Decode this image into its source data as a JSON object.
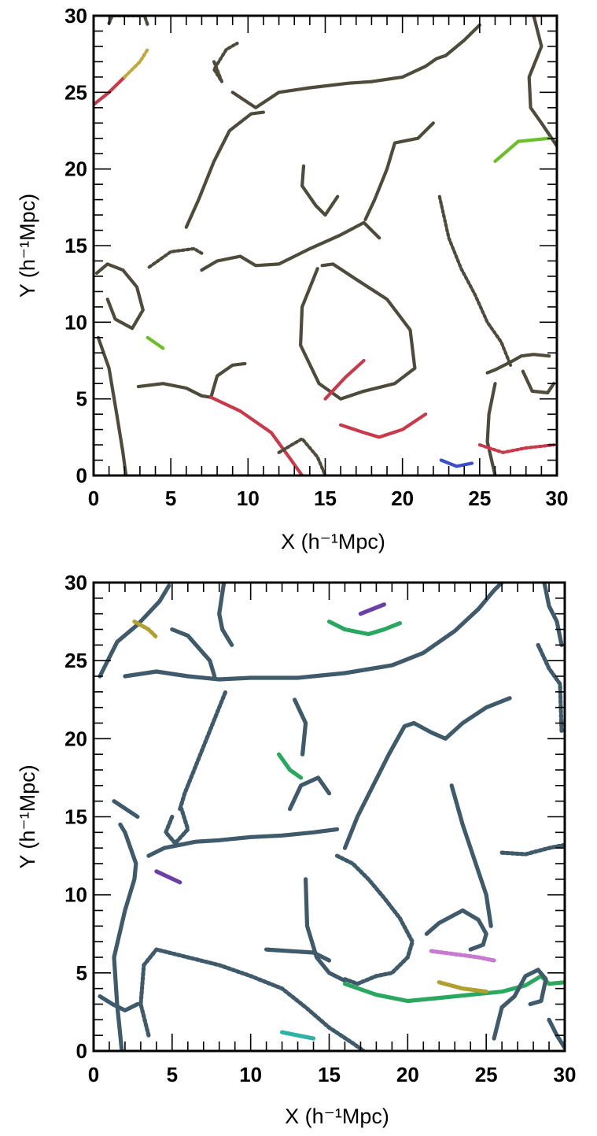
{
  "chart_data": [
    {
      "type": "scatter",
      "title": "",
      "xlabel": "X (h⁻¹Mpc)",
      "ylabel": "Y (h⁻¹Mpc)",
      "xlim": [
        0,
        30
      ],
      "ylim": [
        0,
        30
      ],
      "xticks": [
        "0",
        "5",
        "10",
        "15",
        "20",
        "25",
        "30"
      ],
      "yticks": [
        "0",
        "5",
        "10",
        "15",
        "20",
        "25",
        "30"
      ],
      "grid": false,
      "legend": "none",
      "colors": [
        "#4f4b3b",
        "#c83a4a",
        "#6bbf2a",
        "#3a4fd0",
        "#2fb3a6",
        "#c2a83a",
        "#9b3d6a"
      ],
      "series": [
        {
          "color": "#4f4b3b",
          "x": [
            0.3,
            1.0,
            1.5,
            1.9,
            2.1
          ],
          "y": [
            9.0,
            7.0,
            4.0,
            1.5,
            0.0
          ]
        },
        {
          "color": "#4f4b3b",
          "x": [
            2.9,
            4.5,
            6.0,
            7.0,
            7.6,
            8.0,
            9.0,
            9.8
          ],
          "y": [
            5.8,
            6.0,
            5.7,
            5.2,
            5.1,
            6.5,
            7.2,
            7.3
          ]
        },
        {
          "color": "#c83a4a",
          "x": [
            7.6,
            9.5,
            11.5,
            12.8,
            13.5
          ],
          "y": [
            5.1,
            4.2,
            2.8,
            1.0,
            0.0
          ]
        },
        {
          "color": "#4f4b3b",
          "x": [
            12.0,
            13.5,
            14.5,
            15.0
          ],
          "y": [
            1.5,
            2.4,
            1.2,
            0.0
          ]
        },
        {
          "color": "#4f4b3b",
          "x": [
            14.5,
            13.5,
            13.4,
            14.6,
            16.0,
            17.5,
            19.5,
            20.8,
            20.5,
            19.0,
            17.0,
            15.5,
            14.8
          ],
          "y": [
            13.5,
            11.0,
            8.5,
            6.0,
            5.0,
            5.5,
            6.0,
            7.0,
            9.5,
            11.5,
            12.8,
            13.8,
            13.7
          ]
        },
        {
          "color": "#c83a4a",
          "x": [
            15.0,
            16.3,
            17.5
          ],
          "y": [
            5.0,
            6.4,
            7.5
          ]
        },
        {
          "color": "#4f4b3b",
          "x": [
            0.2,
            0.9,
            1.9,
            2.8,
            3.2,
            2.5,
            1.4,
            0.9
          ],
          "y": [
            13.2,
            13.8,
            13.4,
            12.3,
            10.8,
            9.6,
            10.2,
            11.5
          ]
        },
        {
          "color": "#4f4b3b",
          "x": [
            3.6,
            5.0,
            6.5,
            7.0
          ],
          "y": [
            13.6,
            14.6,
            14.8,
            14.5
          ]
        },
        {
          "color": "#4f4b3b",
          "x": [
            7.0,
            8.0,
            9.5,
            10.5,
            12.0,
            14.0,
            16.0,
            17.5,
            18.5
          ],
          "y": [
            13.4,
            14.0,
            14.3,
            13.7,
            13.8,
            14.8,
            15.7,
            16.5,
            15.5
          ]
        },
        {
          "color": "#4f4b3b",
          "x": [
            6.0,
            6.8,
            7.8,
            8.8,
            10.2,
            11.0
          ],
          "y": [
            16.2,
            18.0,
            20.5,
            22.5,
            23.6,
            23.7
          ]
        },
        {
          "color": "#4f4b3b",
          "x": [
            9.0,
            10.5,
            12.0,
            14.0,
            16.5,
            18.0
          ],
          "y": [
            25.0,
            24.0,
            25.0,
            25.3,
            25.6,
            25.7
          ]
        },
        {
          "color": "#4f4b3b",
          "x": [
            7.8,
            8.3,
            7.8,
            8.6,
            9.3
          ],
          "y": [
            27.0,
            25.7,
            26.5,
            27.8,
            28.2
          ]
        },
        {
          "color": "#4f4b3b",
          "x": [
            18.0,
            20.0,
            21.5,
            22.2,
            22.8,
            24.0,
            25.0
          ],
          "y": [
            25.7,
            26.0,
            26.7,
            27.2,
            27.4,
            28.4,
            29.4
          ]
        },
        {
          "color": "#4f4b3b",
          "x": [
            17.6,
            18.2,
            19.0,
            19.5,
            20.0,
            21.0,
            22.0
          ],
          "y": [
            16.7,
            18.0,
            20.0,
            21.7,
            21.8,
            22.0,
            23.0
          ]
        },
        {
          "color": "#4f4b3b",
          "x": [
            13.6,
            13.5,
            14.4,
            15.0,
            15.8
          ],
          "y": [
            20.2,
            18.9,
            17.6,
            17.0,
            18.2
          ]
        },
        {
          "color": "#4f4b3b",
          "x": [
            22.4,
            23.0,
            23.8,
            24.7,
            25.5,
            26.4,
            27.0
          ],
          "y": [
            18.2,
            15.5,
            13.5,
            11.8,
            10.0,
            8.7,
            7.2
          ]
        },
        {
          "color": "#4f4b3b",
          "x": [
            25.5,
            26.0,
            27.0,
            27.7,
            28.5,
            29.5
          ],
          "y": [
            6.7,
            6.9,
            7.4,
            7.8,
            7.9,
            7.8
          ]
        },
        {
          "color": "#4f4b3b",
          "x": [
            26.0,
            25.6,
            25.5,
            26.0
          ],
          "y": [
            6.0,
            4.0,
            2.2,
            0.0
          ]
        },
        {
          "color": "#4f4b3b",
          "x": [
            27.8,
            28.4,
            29.4,
            29.8
          ],
          "y": [
            6.8,
            5.5,
            5.4,
            6.0
          ]
        },
        {
          "color": "#c83a4a",
          "x": [
            25.0,
            26.5,
            28.0,
            29.8
          ],
          "y": [
            2.0,
            1.5,
            1.8,
            2.0
          ]
        },
        {
          "color": "#4f4b3b",
          "x": [
            28.5,
            29.0,
            28.2,
            28.3,
            29.0,
            30.0
          ],
          "y": [
            30.0,
            28.0,
            26.0,
            24.0,
            23.0,
            21.5
          ]
        },
        {
          "color": "#6bbf2a",
          "x": [
            26.0,
            27.5,
            29.5
          ],
          "y": [
            20.5,
            21.8,
            22.0
          ]
        },
        {
          "color": "#c83a4a",
          "x": [
            0.0,
            1.0,
            2.0
          ],
          "y": [
            24.2,
            25.0,
            26.0
          ]
        },
        {
          "color": "#c2a83a",
          "x": [
            2.0,
            3.0,
            3.5
          ],
          "y": [
            26.0,
            27.0,
            27.8
          ]
        },
        {
          "color": "#6bbf2a",
          "x": [
            3.5,
            4.5
          ],
          "y": [
            9.0,
            8.3
          ]
        },
        {
          "color": "#c83a4a",
          "x": [
            16.0,
            17.5,
            18.5,
            20.0,
            21.5
          ],
          "y": [
            3.3,
            2.8,
            2.5,
            3.0,
            4.0
          ]
        },
        {
          "color": "#3a4fd0",
          "x": [
            22.5,
            23.5,
            24.5
          ],
          "y": [
            1.0,
            0.6,
            0.8
          ]
        },
        {
          "color": "#4f4b3b",
          "x": [
            1.0,
            1.2,
            1.6,
            2.2,
            3.3,
            3.5
          ],
          "y": [
            29.5,
            30.0,
            30.0,
            30.0,
            30.0,
            29.4
          ]
        }
      ]
    },
    {
      "type": "scatter",
      "title": "",
      "xlabel": "X (h⁻¹Mpc)",
      "ylabel": "Y (h⁻¹Mpc)",
      "xlim": [
        0,
        30
      ],
      "ylim": [
        0,
        30
      ],
      "xticks": [
        "0",
        "5",
        "10",
        "15",
        "20",
        "25",
        "30"
      ],
      "yticks": [
        "0",
        "5",
        "10",
        "15",
        "20",
        "25",
        "30"
      ],
      "grid": false,
      "legend": "none",
      "colors": [
        "#3f5a6a",
        "#6a3fa8",
        "#2aa860",
        "#2fb3a6",
        "#b0a030",
        "#c87ad0"
      ],
      "series": [
        {
          "color": "#3f5a6a",
          "x": [
            0.4,
            1.5,
            2.8,
            4.2,
            4.8
          ],
          "y": [
            24.0,
            26.2,
            27.3,
            28.8,
            29.8
          ]
        },
        {
          "color": "#3f5a6a",
          "x": [
            2.0,
            4.0,
            6.0,
            8.0,
            10.0,
            13.0,
            16.0,
            19.0,
            21.0,
            23.0,
            24.5,
            25.5,
            26.0
          ],
          "y": [
            24.0,
            24.3,
            24.0,
            23.8,
            23.9,
            23.9,
            24.2,
            24.7,
            25.5,
            26.9,
            28.3,
            29.5,
            30.0
          ]
        },
        {
          "color": "#3f5a6a",
          "x": [
            5.0,
            6.0,
            7.4,
            7.7
          ],
          "y": [
            27.0,
            26.6,
            25.0,
            24.0
          ]
        },
        {
          "color": "#3f5a6a",
          "x": [
            5.5,
            5.8,
            6.6,
            7.6,
            8.4
          ],
          "y": [
            15.5,
            16.5,
            18.5,
            21.0,
            23.0
          ]
        },
        {
          "color": "#3f5a6a",
          "x": [
            3.5,
            4.5,
            5.5,
            6.5,
            8.0,
            10.0,
            12.0,
            14.0,
            15.5
          ],
          "y": [
            12.5,
            13.0,
            13.2,
            13.4,
            13.5,
            13.7,
            13.8,
            14.0,
            14.2
          ]
        },
        {
          "color": "#3f5a6a",
          "x": [
            16.0,
            16.8,
            17.8,
            18.8,
            19.8,
            20.4
          ],
          "y": [
            13.0,
            15.0,
            17.0,
            19.0,
            20.8,
            21.0
          ]
        },
        {
          "color": "#3f5a6a",
          "x": [
            20.4,
            21.5,
            22.4,
            23.5,
            25.0,
            26.5
          ],
          "y": [
            21.0,
            20.4,
            20.0,
            21.0,
            22.0,
            22.6
          ]
        },
        {
          "color": "#3f5a6a",
          "x": [
            15.5,
            16.5,
            17.5,
            18.5,
            19.5,
            20.3,
            20.0,
            19.0,
            18.0,
            16.8,
            16.0
          ],
          "y": [
            12.5,
            12.0,
            11.0,
            9.8,
            8.5,
            7.0,
            6.0,
            5.0,
            4.8,
            4.3,
            4.6
          ]
        },
        {
          "color": "#3f5a6a",
          "x": [
            13.5,
            13.6,
            14.2,
            15.0,
            16.0
          ],
          "y": [
            11.0,
            8.0,
            6.0,
            5.0,
            4.5
          ]
        },
        {
          "color": "#3f5a6a",
          "x": [
            11.0,
            12.5,
            14.0,
            15.0
          ],
          "y": [
            6.5,
            6.4,
            6.3,
            5.8
          ]
        },
        {
          "color": "#3f5a6a",
          "x": [
            1.8,
            1.5,
            1.3,
            2.0,
            2.6,
            2.7,
            2.0,
            1.7
          ],
          "y": [
            0.0,
            3.0,
            6.0,
            9.0,
            11.0,
            12.0,
            14.0,
            14.5
          ]
        },
        {
          "color": "#3f5a6a",
          "x": [
            3.5,
            3.0,
            3.2,
            4.0,
            6.0,
            8.0,
            10.0,
            12.0,
            13.5,
            15.0,
            16.5,
            17.2
          ],
          "y": [
            1.0,
            3.0,
            5.5,
            6.5,
            6.0,
            5.5,
            4.8,
            4.0,
            2.8,
            1.5,
            0.5,
            0.0
          ]
        },
        {
          "color": "#2aa860",
          "x": [
            16.0,
            18.0,
            20.0,
            22.0,
            24.0,
            26.0,
            27.5,
            28.5,
            29.0,
            30.0
          ],
          "y": [
            4.3,
            3.6,
            3.2,
            3.4,
            3.6,
            3.8,
            4.2,
            4.8,
            4.3,
            4.4
          ]
        },
        {
          "color": "#3f5a6a",
          "x": [
            25.5,
            26.0,
            26.8,
            27.5,
            28.3,
            28.8,
            28.5,
            27.8
          ],
          "y": [
            0.8,
            2.8,
            3.5,
            4.8,
            5.2,
            4.6,
            3.2,
            3.0
          ]
        },
        {
          "color": "#3f5a6a",
          "x": [
            29.0,
            29.5,
            30.0
          ],
          "y": [
            2.0,
            1.0,
            0.2
          ]
        },
        {
          "color": "#3f5a6a",
          "x": [
            26.0,
            27.5,
            29.0,
            30.0
          ],
          "y": [
            12.7,
            12.6,
            13.0,
            13.2
          ]
        },
        {
          "color": "#3f5a6a",
          "x": [
            22.8,
            23.5,
            24.5,
            25.0,
            25.3
          ],
          "y": [
            17.0,
            14.5,
            11.5,
            10.0,
            8.0
          ]
        },
        {
          "color": "#3f5a6a",
          "x": [
            21.2,
            22.0,
            23.5,
            24.5,
            25.0,
            24.8,
            24.0
          ],
          "y": [
            7.5,
            8.2,
            9.0,
            8.4,
            7.5,
            6.8,
            6.5
          ]
        },
        {
          "color": "#3f5a6a",
          "x": [
            28.7,
            29.0,
            29.5,
            29.8
          ],
          "y": [
            30.0,
            28.5,
            27.5,
            26.0
          ]
        },
        {
          "color": "#3f5a6a",
          "x": [
            28.3,
            29.0,
            29.7,
            29.8
          ],
          "y": [
            26.0,
            24.5,
            23.5,
            20.5
          ]
        },
        {
          "color": "#3f5a6a",
          "x": [
            8.3,
            8.0,
            8.2,
            8.8
          ],
          "y": [
            30.0,
            28.0,
            27.0,
            26.0
          ]
        },
        {
          "color": "#2aa860",
          "x": [
            15.0,
            16.0,
            17.5,
            18.5,
            19.5
          ],
          "y": [
            27.5,
            27.0,
            26.7,
            27.0,
            27.4
          ]
        },
        {
          "color": "#6a3fa8",
          "x": [
            17.0,
            18.5
          ],
          "y": [
            28.0,
            28.6
          ]
        },
        {
          "color": "#b0a030",
          "x": [
            2.6,
            3.5,
            4.0
          ],
          "y": [
            27.5,
            27.0,
            26.5
          ]
        },
        {
          "color": "#3f5a6a",
          "x": [
            12.8,
            13.5,
            13.3
          ],
          "y": [
            22.5,
            21.0,
            19.0
          ]
        },
        {
          "color": "#2aa860",
          "x": [
            11.8,
            12.5,
            13.2
          ],
          "y": [
            19.0,
            18.0,
            17.5
          ]
        },
        {
          "color": "#3f5a6a",
          "x": [
            1.3,
            2.8
          ],
          "y": [
            16.0,
            15.0
          ]
        },
        {
          "color": "#3f5a6a",
          "x": [
            5.0,
            4.6,
            5.2,
            6.0,
            5.6
          ],
          "y": [
            15.0,
            14.0,
            13.3,
            14.2,
            15.5
          ]
        },
        {
          "color": "#6a3fa8",
          "x": [
            4.0,
            5.5
          ],
          "y": [
            11.5,
            10.8
          ]
        },
        {
          "color": "#3f5a6a",
          "x": [
            0.4,
            1.2,
            2.0,
            2.8
          ],
          "y": [
            3.5,
            3.0,
            2.6,
            3.0
          ]
        },
        {
          "color": "#2fb3a6",
          "x": [
            12.0,
            13.0,
            14.0
          ],
          "y": [
            1.2,
            1.0,
            0.8
          ]
        },
        {
          "color": "#c87ad0",
          "x": [
            21.5,
            23.0,
            24.5,
            25.5
          ],
          "y": [
            6.4,
            6.2,
            6.0,
            5.8
          ]
        },
        {
          "color": "#b0a030",
          "x": [
            22.0,
            23.5,
            25.0
          ],
          "y": [
            4.4,
            4.0,
            3.8
          ]
        },
        {
          "color": "#3f5a6a",
          "x": [
            12.5,
            13.2,
            14.3,
            15.0
          ],
          "y": [
            15.5,
            17.0,
            17.5,
            16.5
          ]
        }
      ]
    }
  ]
}
